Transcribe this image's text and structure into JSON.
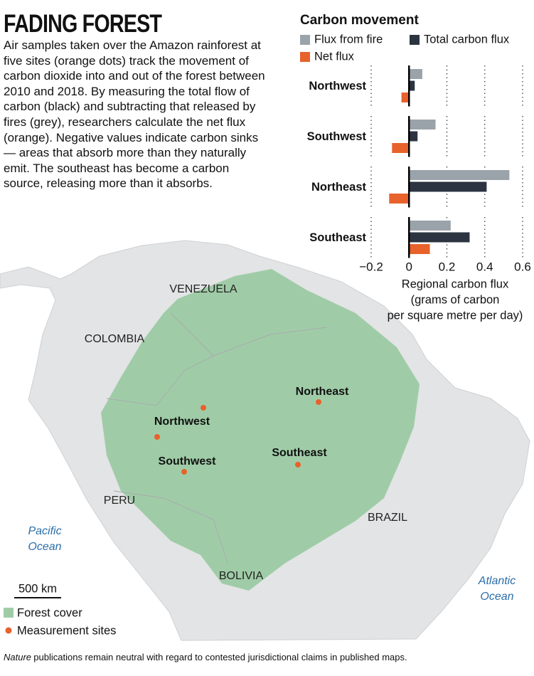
{
  "header": {
    "title": "FADING FOREST",
    "body": "Air samples taken over the Amazon rainforest at five sites (orange dots) track the movement of carbon dioxide into and out of the forest between 2010 and 2018. By measuring the total flow of carbon (black) and subtracting that released by fires (grey), researchers calculate the net flux (orange). Negative values indicate carbon sinks — areas that absorb more than they naturally emit. The southeast has become a carbon source, releasing more than it absorbs."
  },
  "chart_data": {
    "type": "bar",
    "orientation": "horizontal",
    "title": "Carbon movement",
    "categories": [
      "Northwest",
      "Southwest",
      "Northeast",
      "Southeast"
    ],
    "series": [
      {
        "name": "Flux from fire",
        "color": "#9aa2aa",
        "values": [
          0.07,
          0.14,
          0.53,
          0.22
        ]
      },
      {
        "name": "Total carbon flux",
        "color": "#2b3440",
        "values": [
          0.03,
          0.045,
          0.41,
          0.32
        ]
      },
      {
        "name": "Net flux",
        "color": "#e8622c",
        "values": [
          -0.04,
          -0.09,
          -0.105,
          0.11
        ]
      }
    ],
    "xlim": [
      -0.2,
      0.6
    ],
    "xticks": [
      {
        "value": -0.2,
        "label": "−0.2"
      },
      0,
      0.2,
      0.4,
      0.6
    ],
    "xlabel": [
      "Regional carbon flux",
      "(grams of carbon",
      "per square metre per day)"
    ],
    "grid": true
  },
  "map": {
    "countries": [
      "VENEZUELA",
      "COLOMBIA",
      "PERU",
      "BRAZIL",
      "BOLIVIA"
    ],
    "sites": [
      "Northeast",
      "Northwest",
      "Southwest",
      "Southeast"
    ],
    "oceans": [
      [
        "Pacific",
        "Ocean"
      ],
      [
        "Atlantic",
        "Ocean"
      ]
    ],
    "scale": "500 km",
    "legend": [
      "Forest cover",
      "Measurement sites"
    ]
  },
  "footnote": {
    "emphasis": "Nature",
    "text": "publications remain neutral with regard to contested jurisdictional claims in published maps."
  }
}
